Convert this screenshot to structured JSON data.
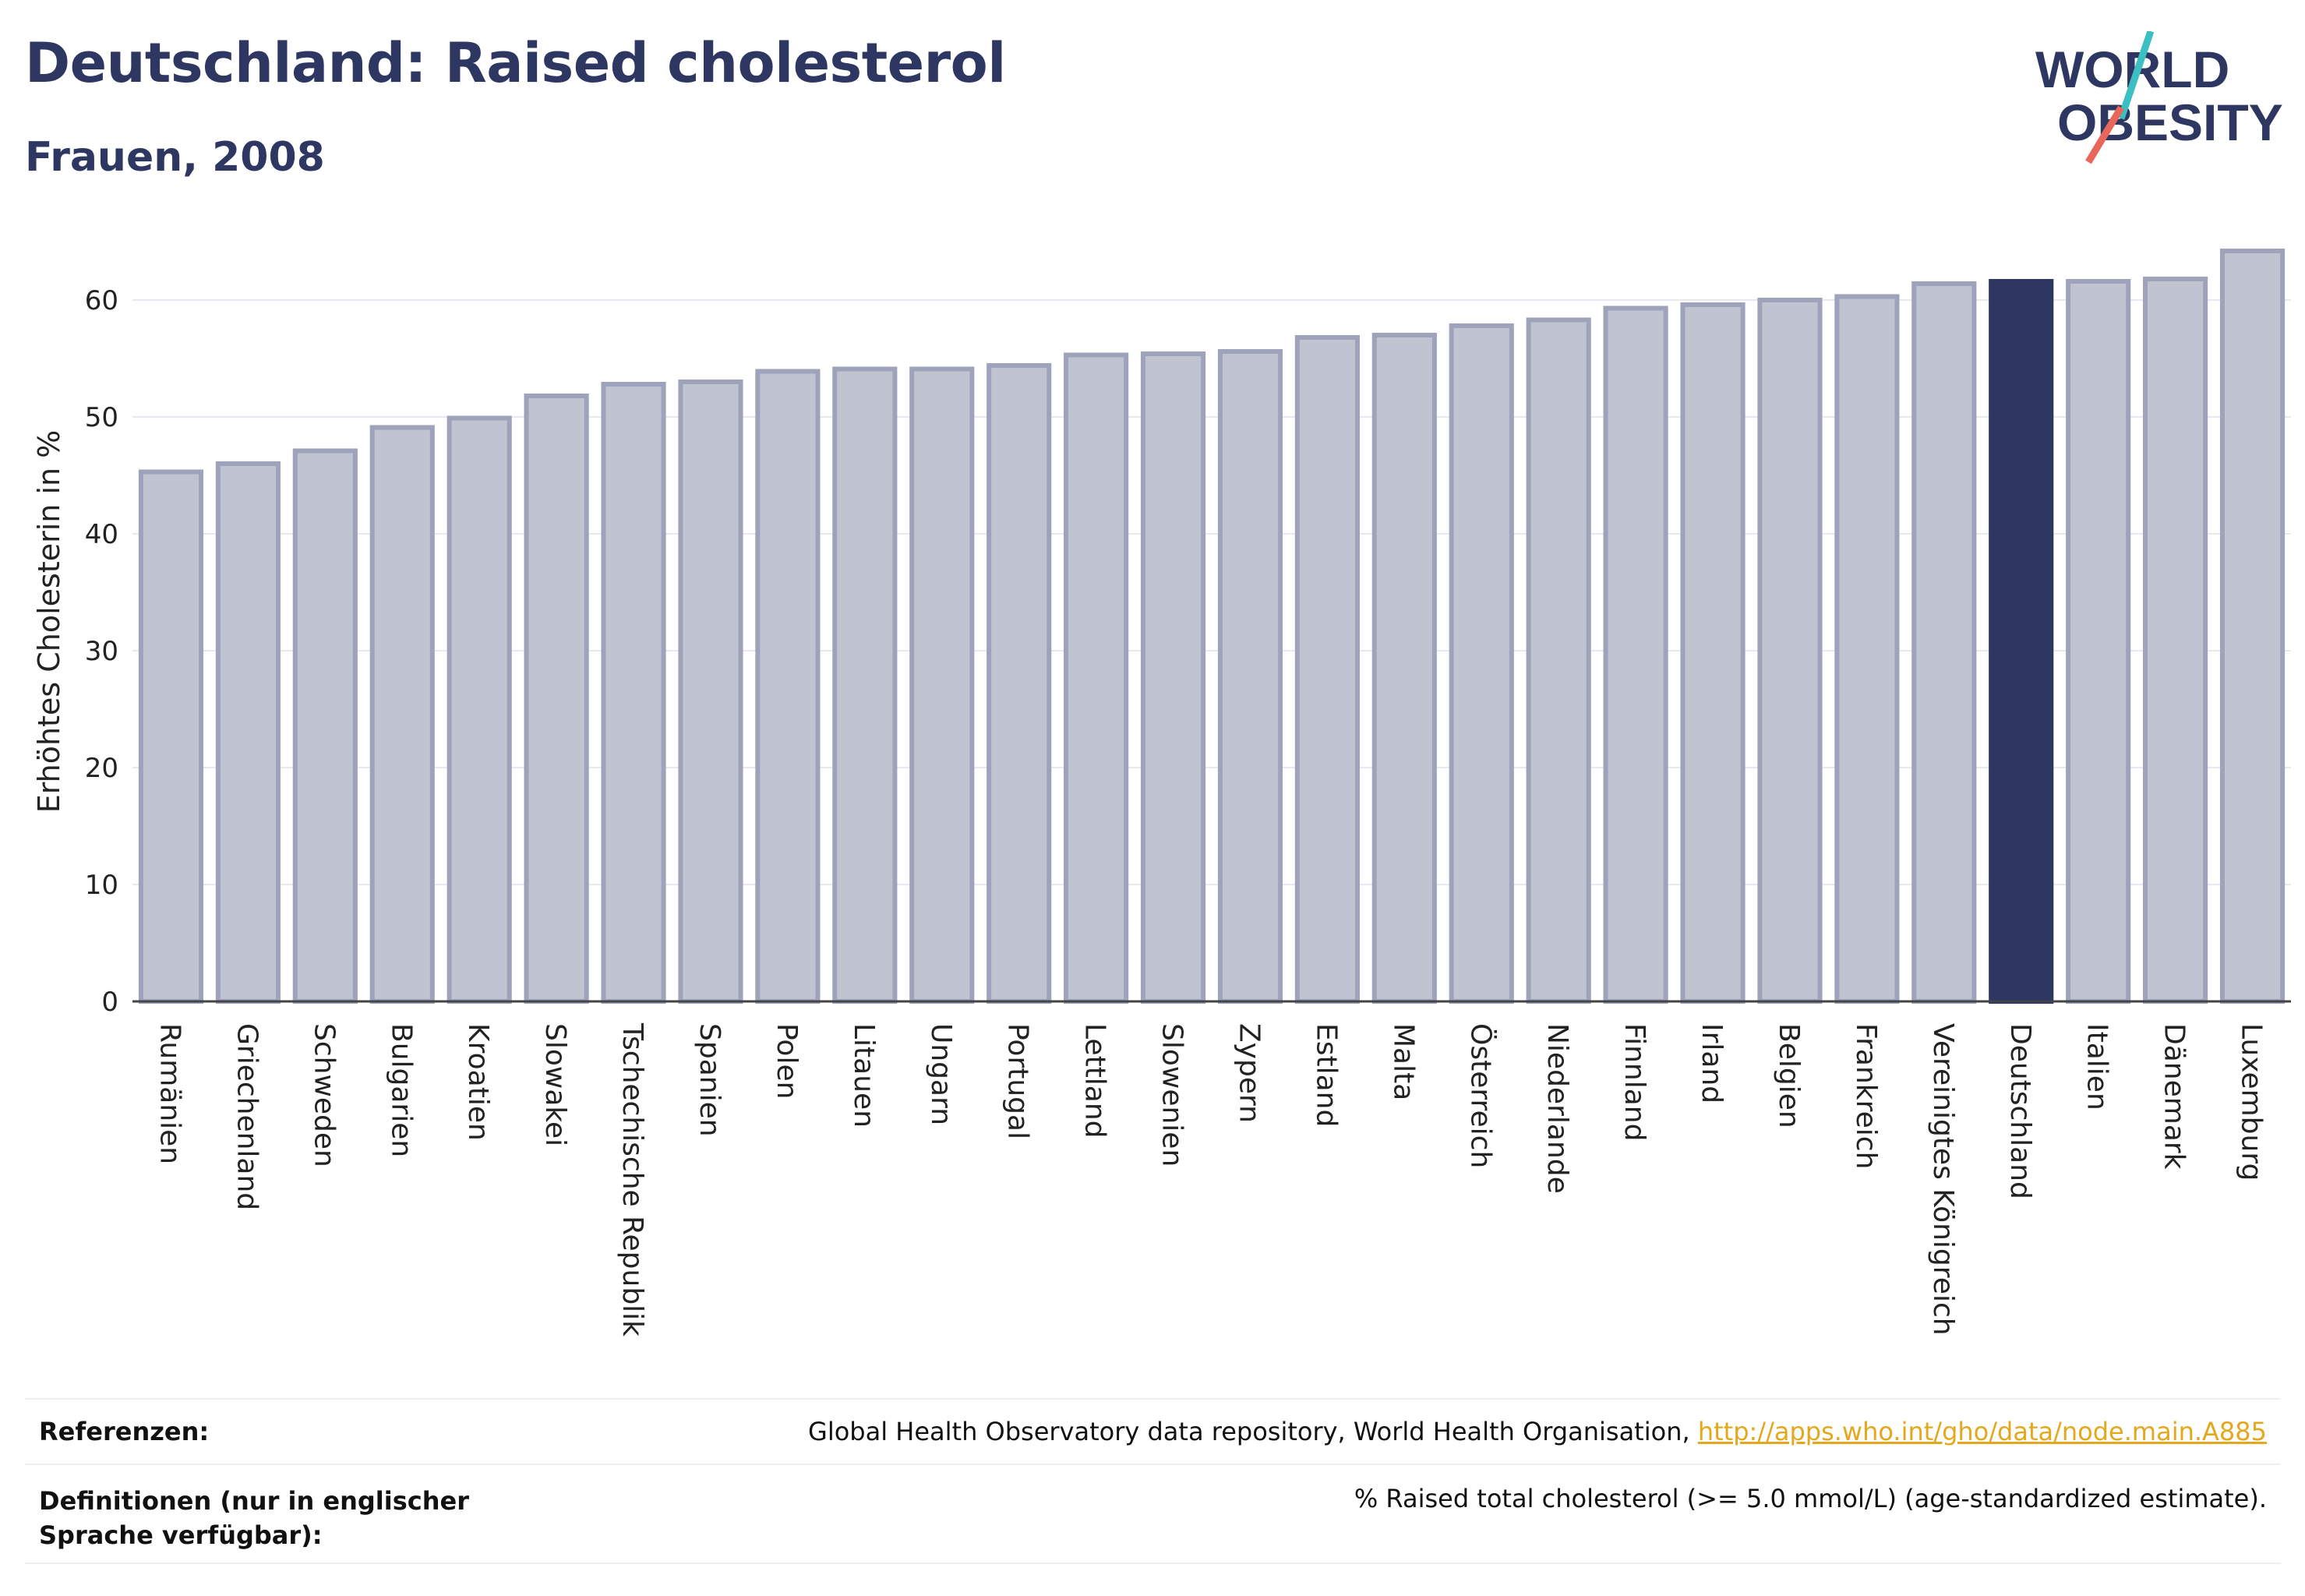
{
  "header": {
    "title": "Deutschland: Raised cholesterol",
    "subtitle": "Frauen, 2008"
  },
  "logo": {
    "line1": "WORLD",
    "line2": "OBESITY",
    "colors": {
      "text": "#2d3761",
      "slash_teal": "#3bbfc1",
      "slash_red": "#e8665a"
    }
  },
  "chart_data": {
    "type": "bar",
    "ylabel": "Erhöhtes Cholesterin in %",
    "xlabel": "",
    "ylim": [
      0,
      65
    ],
    "yticks": [
      0,
      10,
      20,
      30,
      40,
      50,
      60
    ],
    "grid": true,
    "highlight": "Deutschland",
    "colors": {
      "bar": "#c0c3d0",
      "bar_border": "#9ea3bb",
      "highlight": "#2d3761",
      "grid": "#e8e8ee"
    },
    "categories": [
      "Rumänien",
      "Griechenland",
      "Schweden",
      "Bulgarien",
      "Kroatien",
      "Slowakei",
      "Tschechische Republik",
      "Spanien",
      "Polen",
      "Litauen",
      "Ungarn",
      "Portugal",
      "Lettland",
      "Slowenien",
      "Zypern",
      "Estland",
      "Malta",
      "Österreich",
      "Niederlande",
      "Finnland",
      "Irland",
      "Belgien",
      "Frankreich",
      "Vereinigtes Königreich",
      "Deutschland",
      "Italien",
      "Dänemark",
      "Luxemburg"
    ],
    "values": [
      45.3,
      46.0,
      47.1,
      49.1,
      49.9,
      51.8,
      52.8,
      53.0,
      53.9,
      54.1,
      54.1,
      54.4,
      55.3,
      55.4,
      55.6,
      56.8,
      57.0,
      57.8,
      58.3,
      59.3,
      59.6,
      60.0,
      60.3,
      61.4,
      61.6,
      61.6,
      61.8,
      64.2
    ]
  },
  "footer": {
    "references_label": "Referenzen:",
    "references_text": "Global Health Observatory data repository, World Health Organisation, ",
    "references_link": "http://apps.who.int/gho/data/node.main.A885",
    "definitions_label": "Definitionen (nur in englischer Sprache verfügbar):",
    "definitions_text": "% Raised total cholesterol (>= 5.0 mmol/L) (age-standardized estimate)."
  }
}
